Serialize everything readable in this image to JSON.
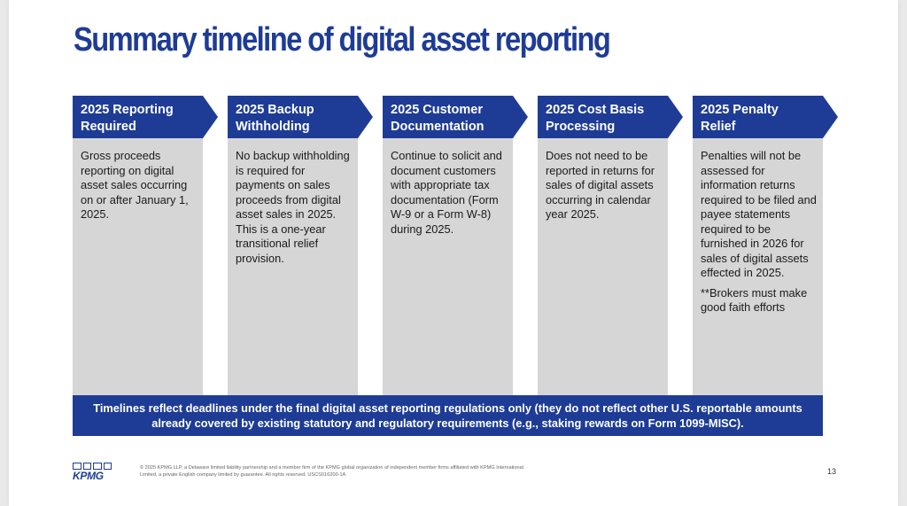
{
  "title": "Summary timeline of digital asset reporting",
  "columns": [
    {
      "heading_line1": "2025 Reporting",
      "heading_line2": "Required",
      "body": [
        "Gross proceeds reporting on digital asset sales occurring on or after January 1, 2025."
      ]
    },
    {
      "heading_line1": "2025 Backup",
      "heading_line2": "Withholding",
      "body": [
        "No backup withholding is required for payments on sales proceeds from digital asset sales in 2025. This is a one-year transitional relief provision."
      ]
    },
    {
      "heading_line1": "2025 Customer",
      "heading_line2": "Documentation",
      "body": [
        "Continue to solicit and document customers with appropriate tax documentation (Form W-9 or a Form W-8) during 2025."
      ]
    },
    {
      "heading_line1": "2025 Cost Basis",
      "heading_line2": "Processing",
      "body": [
        "Does not need to be reported in returns for sales of digital assets occurring in calendar year 2025."
      ]
    },
    {
      "heading_line1": "2025 Penalty",
      "heading_line2": "Relief",
      "body": [
        "Penalties will not be assessed for information returns required to be filed and payee statements required to be furnished in 2026 for sales of digital assets effected in 2025.",
        "**Brokers must make good faith efforts"
      ]
    }
  ],
  "banner": "Timelines reflect deadlines under the final digital asset reporting regulations only (they do not reflect other U.S. reportable amounts already covered by existing statutory and regulatory requirements (e.g., staking rewards on Form 1099-MISC).",
  "footer": {
    "logo": "KPMG",
    "legal": "© 2025 KPMG LLP, a Delaware limited liability partnership and a member firm of the KPMG global organization of independent member firms affiliated with KPMG International Limited, a private English company limited by guarantee. All rights reserved. USCS016200-1A",
    "page_number": "13"
  },
  "colors": {
    "brand_blue": "#1e3c96",
    "panel_gray": "#d6d6d6"
  }
}
